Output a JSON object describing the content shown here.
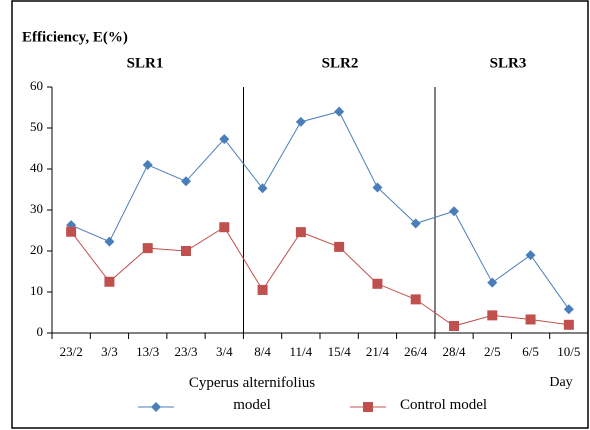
{
  "chart_data": {
    "type": "line",
    "ylabel": "Efficiency, E(%)",
    "xlabel": "Day",
    "sections": [
      "SLR1",
      "SLR2",
      "SLR3"
    ],
    "categories": [
      "23/2",
      "3/3",
      "13/3",
      "23/3",
      "3/4",
      "8/4",
      "11/4",
      "15/4",
      "21/4",
      "26/4",
      "28/4",
      "2/5",
      "6/5",
      "10/5"
    ],
    "series": [
      {
        "name": "Cyperus alternifolius model",
        "color": "#4a7ebb",
        "marker": "diamond",
        "values": [
          26.3,
          22.3,
          41,
          37,
          47.3,
          35.3,
          51.5,
          54,
          35.5,
          26.7,
          29.7,
          12.3,
          19,
          5.8
        ]
      },
      {
        "name": "Control model",
        "color": "#c0504d",
        "marker": "square",
        "values": [
          24.7,
          12.5,
          20.7,
          20,
          25.8,
          10.5,
          24.6,
          21,
          12,
          8.2,
          1.7,
          4.3,
          3.3,
          2
        ]
      }
    ],
    "ylim": [
      0,
      60
    ],
    "yticks": [
      0,
      10,
      20,
      30,
      40,
      50,
      60
    ],
    "grid": false
  }
}
